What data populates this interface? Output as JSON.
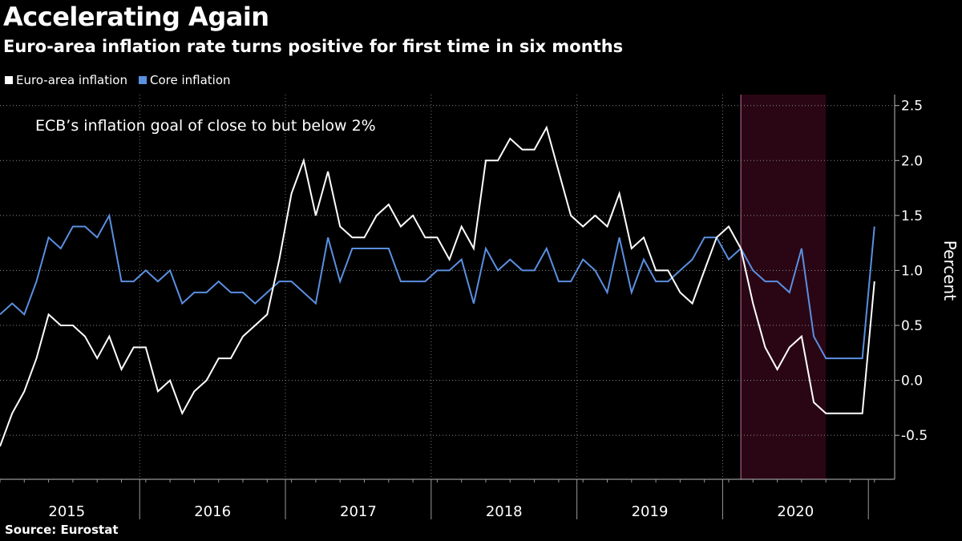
{
  "title": "Accelerating Again",
  "subtitle": "Euro-area inflation rate turns positive for first time in six months",
  "source": "Source:  Eurostat",
  "colors": {
    "background": "#000000",
    "headline": "#ffffff",
    "core": "#5b8fe0",
    "shade": "#2a0614",
    "shade_border": "#c06a9a"
  },
  "chart_data": {
    "type": "line",
    "ylabel": "Percent",
    "ylim": [
      -0.9,
      2.6
    ],
    "yticks": [
      -0.5,
      0.0,
      0.5,
      1.0,
      1.5,
      2.0,
      2.5
    ],
    "ytick_labels": [
      "-0.5",
      "0.0",
      "0.5",
      "1.0",
      "1.5",
      "2.0",
      "2.5"
    ],
    "x_start": "2015-01",
    "xtick_labels": [
      "2015",
      "2016",
      "2017",
      "2018",
      "2019",
      "2020"
    ],
    "grid": true,
    "legend": "top-left",
    "annotation": "ECB’s inflation goal of close to but below 2%",
    "shaded_region": [
      "2020-02",
      "2020-09"
    ],
    "series": [
      {
        "name": "Euro-area inflation",
        "values": [
          -0.6,
          -0.3,
          -0.1,
          0.2,
          0.6,
          0.5,
          0.5,
          0.4,
          0.2,
          0.4,
          0.1,
          0.3,
          0.3,
          -0.1,
          0.0,
          -0.3,
          -0.1,
          0.0,
          0.2,
          0.2,
          0.4,
          0.5,
          0.6,
          1.1,
          1.7,
          2.0,
          1.5,
          1.9,
          1.4,
          1.3,
          1.3,
          1.5,
          1.6,
          1.4,
          1.5,
          1.3,
          1.3,
          1.1,
          1.4,
          1.2,
          2.0,
          2.0,
          2.2,
          2.1,
          2.1,
          2.3,
          1.9,
          1.5,
          1.4,
          1.5,
          1.4,
          1.7,
          1.2,
          1.3,
          1.0,
          1.0,
          0.8,
          0.7,
          1.0,
          1.3,
          1.4,
          1.2,
          0.7,
          0.3,
          0.1,
          0.3,
          0.4,
          -0.2,
          -0.3,
          -0.3,
          -0.3,
          -0.3,
          0.9
        ]
      },
      {
        "name": "Core inflation",
        "values": [
          0.6,
          0.7,
          0.6,
          0.9,
          1.3,
          1.2,
          1.4,
          1.4,
          1.3,
          1.5,
          0.9,
          0.9,
          1.0,
          0.9,
          1.0,
          0.7,
          0.8,
          0.8,
          0.9,
          0.8,
          0.8,
          0.7,
          0.8,
          0.9,
          0.9,
          0.8,
          0.7,
          1.3,
          0.9,
          1.2,
          1.2,
          1.2,
          1.2,
          0.9,
          0.9,
          0.9,
          1.0,
          1.0,
          1.1,
          0.7,
          1.2,
          1.0,
          1.1,
          1.0,
          1.0,
          1.2,
          0.9,
          0.9,
          1.1,
          1.0,
          0.8,
          1.3,
          0.8,
          1.1,
          0.9,
          0.9,
          1.0,
          1.1,
          1.3,
          1.3,
          1.1,
          1.2,
          1.0,
          0.9,
          0.9,
          0.8,
          1.2,
          0.4,
          0.2,
          0.2,
          0.2,
          0.2,
          1.4
        ]
      }
    ]
  }
}
